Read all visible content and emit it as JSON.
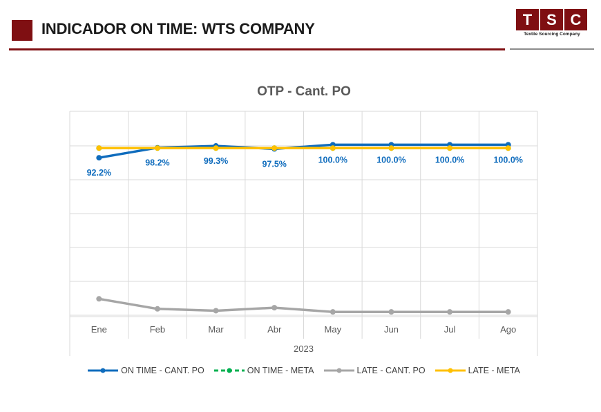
{
  "header": {
    "title": "INDICADOR ON TIME: WTS COMPANY",
    "logo_letters": [
      "T",
      "S",
      "C"
    ],
    "logo_subtitle": "Textile Sourcing Company",
    "brand_color": "#7f0f12"
  },
  "chart_data": {
    "type": "line",
    "title": "OTP - Cant. PO",
    "categories": [
      "Ene",
      "Feb",
      "Mar",
      "Abr",
      "May",
      "Jun",
      "Jul",
      "Ago"
    ],
    "group_label": "2023",
    "series": [
      {
        "name": "ON TIME - CANT. PO",
        "color": "#0f6cbd",
        "values": [
          92.2,
          98.2,
          99.3,
          97.5,
          100.0,
          100.0,
          100.0,
          100.0
        ],
        "data_labels": [
          "92.2%",
          "98.2%",
          "99.3%",
          "97.5%",
          "100.0%",
          "100.0%",
          "100.0%",
          "100.0%"
        ]
      },
      {
        "name": "ON TIME - META",
        "color": "#00b050",
        "dashed": true,
        "values": [
          98.0,
          98.0,
          98.0,
          98.0,
          98.0,
          98.0,
          98.0,
          98.0
        ]
      },
      {
        "name": "LATE - CANT. PO",
        "color": "#a6a6a6",
        "values": [
          7.8,
          1.8,
          0.7,
          2.5,
          0.0,
          0.0,
          0.0,
          0.0
        ]
      },
      {
        "name": "LATE - META",
        "color": "#ffc000",
        "values": [
          98.0,
          98.0,
          98.0,
          98.0,
          98.0,
          98.0,
          98.0,
          98.0
        ]
      }
    ],
    "ylim": [
      -2,
      120
    ],
    "grid": true,
    "legend_position": "bottom"
  }
}
